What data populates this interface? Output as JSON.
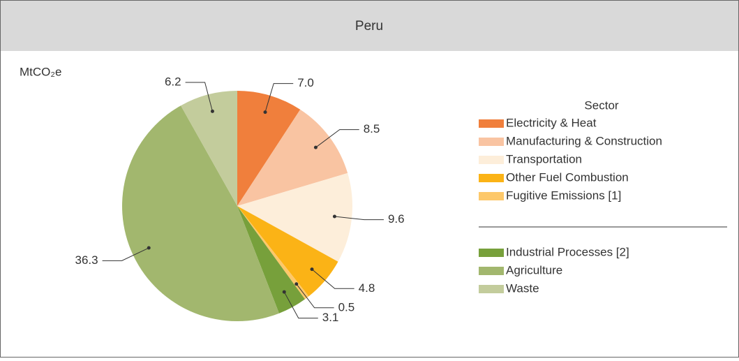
{
  "chart_data": {
    "type": "pie",
    "title": "Peru",
    "unit": "MtCO₂e",
    "legend_title": "Sector",
    "categories": [
      "Electricity & Heat",
      "Manufacturing & Construction",
      "Transportation",
      "Other Fuel Combustion",
      "Fugitive Emissions [1]",
      "Industrial Processes [2]",
      "Agriculture",
      "Waste"
    ],
    "values": [
      7.0,
      8.5,
      9.6,
      4.8,
      0.5,
      3.1,
      36.3,
      6.2
    ],
    "value_labels": [
      "7.0",
      "8.5",
      "9.6",
      "4.8",
      "0.5",
      "3.1",
      "36.3",
      "6.2"
    ],
    "colors": [
      "#f07f3c",
      "#f9c4a2",
      "#fdeeda",
      "#fbb316",
      "#fdc86a",
      "#77a03b",
      "#a2b76e",
      "#c3cc9c"
    ]
  }
}
